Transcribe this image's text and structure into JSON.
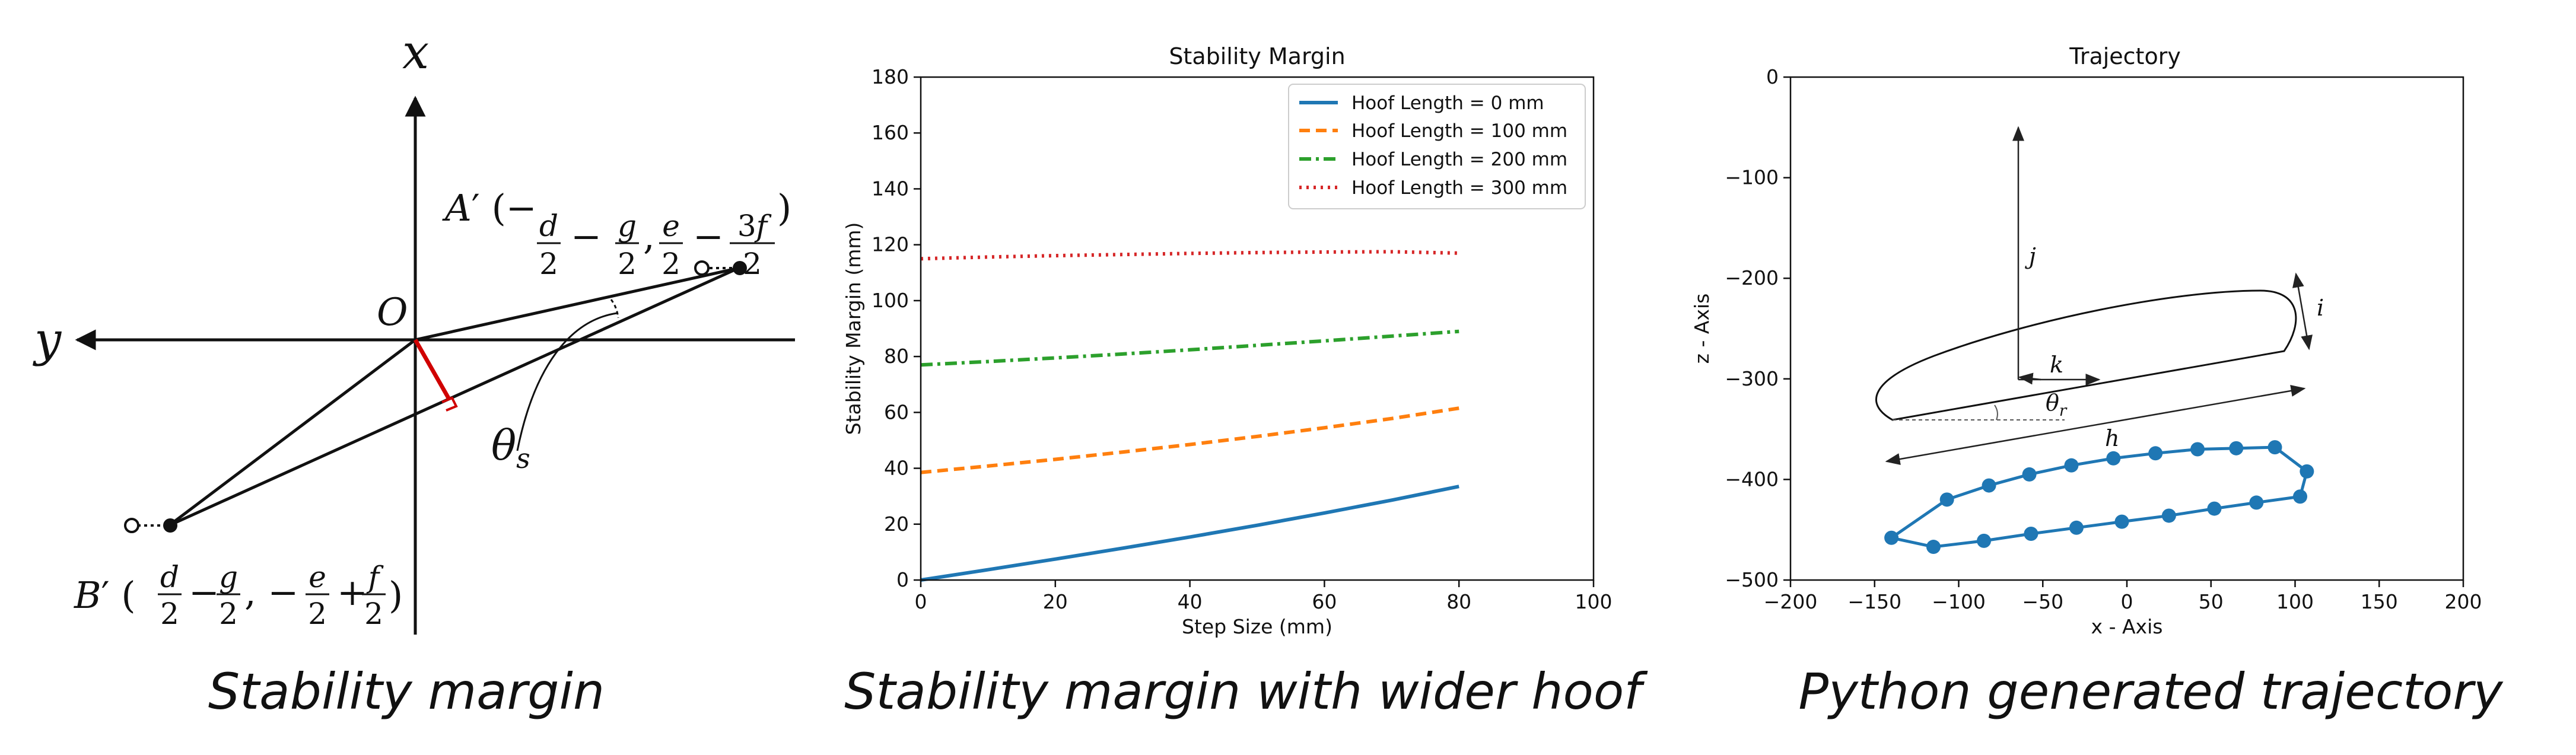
{
  "panels": {
    "diagram": {
      "caption": "Stability margin",
      "x_axis_label": "x",
      "y_axis_label": "y",
      "origin_label": "O",
      "angle_label": "θs",
      "point_a_label": "A′ (−d/2 − g/2, e/2 − 3f/2)",
      "point_b_label": "B′ (d/2 − g/2, −e/2 + f/2)"
    },
    "stability": {
      "caption": "Stability margin with wider hoof"
    },
    "trajectory": {
      "caption": "Python generated trajectory",
      "annotations": {
        "h": "h",
        "i": "i",
        "j": "j",
        "k": "k",
        "theta": "θr"
      }
    }
  },
  "chart_data": [
    {
      "type": "line",
      "title": "Stability Margin",
      "xlabel": "Step Size (mm)",
      "ylabel": "Stability Margin (mm)",
      "xlim": [
        0,
        100
      ],
      "ylim": [
        0,
        180
      ],
      "xticks": [
        0,
        20,
        40,
        60,
        80,
        100
      ],
      "yticks": [
        0,
        20,
        40,
        60,
        80,
        100,
        120,
        140,
        160,
        180
      ],
      "grid": false,
      "legend_position": "top-right",
      "x": [
        0,
        10,
        20,
        30,
        40,
        50,
        60,
        70,
        80
      ],
      "series": [
        {
          "name": "Hoof Length = 0 mm",
          "color": "#1f77b4",
          "style": "solid",
          "values": [
            0,
            3.7,
            7.5,
            11.4,
            15.4,
            19.6,
            24.0,
            28.6,
            33.5
          ]
        },
        {
          "name": "Hoof Length = 100 mm",
          "color": "#ff7f0e",
          "style": "dashed",
          "values": [
            38.5,
            40.8,
            43.2,
            45.8,
            48.5,
            51.4,
            54.5,
            57.8,
            61.5
          ]
        },
        {
          "name": "Hoof Length = 200 mm",
          "color": "#2ca02c",
          "style": "dashdot",
          "values": [
            77.0,
            78.2,
            79.5,
            80.9,
            82.4,
            84.0,
            85.6,
            87.3,
            89.0
          ]
        },
        {
          "name": "Hoof Length = 300 mm",
          "color": "#d62728",
          "style": "dotted",
          "values": [
            115.0,
            115.6,
            116.1,
            116.5,
            116.9,
            117.2,
            117.4,
            117.5,
            117.0
          ]
        }
      ]
    },
    {
      "type": "scatter",
      "title": "Trajectory",
      "xlabel": "x - Axis",
      "ylabel": "z - Axis",
      "xlim": [
        -200,
        200
      ],
      "ylim": [
        -500,
        0
      ],
      "xticks": [
        -200,
        -150,
        -100,
        -50,
        0,
        50,
        100,
        150,
        200
      ],
      "yticks": [
        0,
        -100,
        -200,
        -300,
        -400,
        -500
      ],
      "grid": false,
      "series": [
        {
          "name": "",
          "color": "#1f77b4",
          "style": "solid-markers",
          "points": [
            [
              -140,
              -458
            ],
            [
              -115,
              -467
            ],
            [
              -85,
              -461
            ],
            [
              -57,
              -454
            ],
            [
              -30,
              -448
            ],
            [
              -3,
              -442
            ],
            [
              25,
              -436
            ],
            [
              52,
              -429
            ],
            [
              77,
              -423
            ],
            [
              103,
              -417
            ],
            [
              107,
              -392
            ],
            [
              88,
              -368
            ],
            [
              65,
              -369
            ],
            [
              42,
              -370
            ],
            [
              17,
              -374
            ],
            [
              -8,
              -379
            ],
            [
              -33,
              -386
            ],
            [
              -58,
              -395
            ],
            [
              -82,
              -406
            ],
            [
              -107,
              -420
            ],
            [
              -140,
              -458
            ]
          ]
        }
      ]
    }
  ]
}
